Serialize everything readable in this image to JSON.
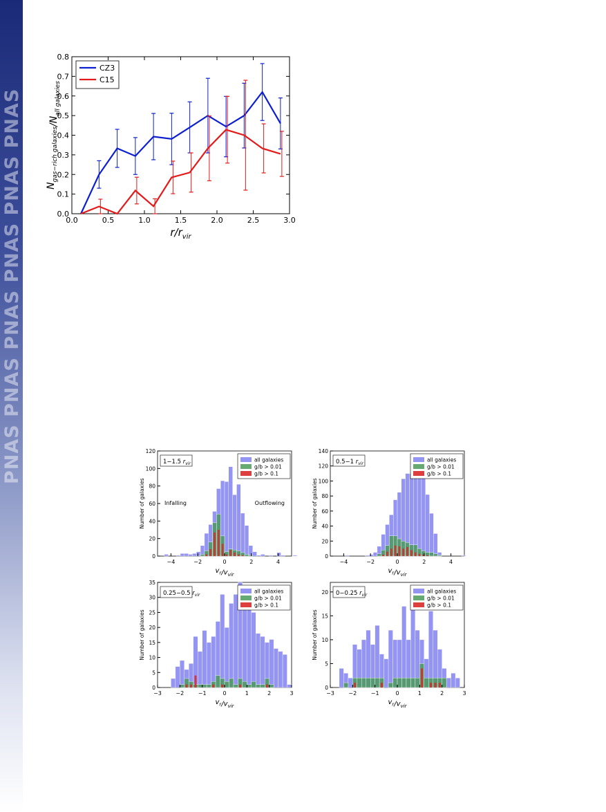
{
  "branding": {
    "journal": "PNAS"
  },
  "colors": {
    "cz3": "#0b1fd0",
    "c15": "#e31a1a",
    "all": "#8e8ef2",
    "g001": "#4c9a5a",
    "g01": "#d92a2a"
  },
  "chart_data": [
    {
      "type": "line",
      "xlabel": "r/r_vir",
      "ylabel": "N_gas−rich galaxies/N_all galaxies",
      "xlim": [
        0,
        3.0
      ],
      "ylim": [
        0,
        0.8
      ],
      "xticks": [
        "0.0",
        "0.5",
        "1.0",
        "1.5",
        "2.0",
        "2.5",
        "3.0"
      ],
      "yticks": [
        "0.0",
        "0.1",
        "0.2",
        "0.3",
        "0.4",
        "0.5",
        "0.6",
        "0.7",
        "0.8"
      ],
      "legend": "top-left",
      "series": [
        {
          "name": "CZ3",
          "color": "#0b1fd0",
          "x": [
            0.125,
            0.375,
            0.625,
            0.875,
            1.125,
            1.375,
            1.625,
            1.875,
            2.125,
            2.375,
            2.625,
            2.875
          ],
          "y": [
            0.0,
            0.2,
            0.333,
            0.294,
            0.393,
            0.381,
            0.44,
            0.5,
            0.444,
            0.5,
            0.62,
            0.46
          ],
          "err_low": [
            0.0,
            0.07,
            0.097,
            0.094,
            0.118,
            0.131,
            0.13,
            0.19,
            0.154,
            0.165,
            0.145,
            0.13
          ],
          "err_high": [
            0.0,
            0.07,
            0.097,
            0.094,
            0.118,
            0.131,
            0.13,
            0.19,
            0.154,
            0.165,
            0.145,
            0.13
          ]
        },
        {
          "name": "C15",
          "color": "#e31a1a",
          "x": [
            0.125,
            0.375,
            0.625,
            0.875,
            1.125,
            1.375,
            1.625,
            1.875,
            2.125,
            2.375,
            2.625,
            2.875
          ],
          "y": [
            0.0,
            0.037,
            0.0,
            0.118,
            0.038,
            0.185,
            0.21,
            0.333,
            0.428,
            0.4,
            0.333,
            0.305
          ],
          "err_low": [
            0.0,
            0.037,
            0.0,
            0.068,
            0.038,
            0.083,
            0.1,
            0.165,
            0.17,
            0.28,
            0.125,
            0.115
          ],
          "err_high": [
            0.0,
            0.037,
            0.0,
            0.068,
            0.038,
            0.083,
            0.1,
            0.165,
            0.17,
            0.28,
            0.125,
            0.115
          ]
        }
      ]
    },
    {
      "type": "bar",
      "panel_label": "1−1.5  r_vir",
      "xlabel": "v_r/v_vir",
      "ylabel": "Number of galaxies",
      "xlim": [
        -5,
        5
      ],
      "ylim": [
        0,
        120
      ],
      "xticks": [
        -4,
        -2,
        0,
        2,
        4
      ],
      "yticks": [
        0,
        20,
        40,
        60,
        80,
        100,
        120
      ],
      "annotations": [
        "Infalling",
        "Outflowing"
      ],
      "bin_start": -4.5,
      "bin_width": 0.3,
      "series": [
        {
          "name": "all galaxies",
          "values": [
            2,
            0,
            0,
            1,
            3,
            3,
            2,
            3,
            5,
            12,
            26,
            36,
            51,
            77,
            86,
            85,
            102,
            70,
            82,
            49,
            35,
            12,
            5,
            1,
            2,
            0,
            1,
            0,
            4,
            1,
            0,
            0,
            1
          ]
        },
        {
          "name": "g/b > 0.01",
          "values": [
            0,
            0,
            0,
            0,
            0,
            0,
            0,
            0,
            0,
            2,
            6,
            16,
            38,
            48,
            23,
            5,
            8,
            7,
            6,
            4,
            2,
            1,
            0,
            0,
            0,
            0,
            0,
            0,
            0,
            0,
            0,
            0,
            0
          ]
        },
        {
          "name": "g/b > 0.1",
          "values": [
            0,
            0,
            0,
            0,
            0,
            0,
            0,
            0,
            0,
            0,
            2,
            8,
            27,
            30,
            14,
            2,
            7,
            4,
            2,
            1,
            0,
            0,
            0,
            0,
            0,
            0,
            0,
            0,
            0,
            0,
            0,
            0,
            0
          ]
        }
      ]
    },
    {
      "type": "bar",
      "panel_label": "0.5−1  r_vir",
      "xlabel": "v_r/v_vir",
      "ylabel": "Number of galaxies",
      "xlim": [
        -5,
        5
      ],
      "ylim": [
        0,
        140
      ],
      "xticks": [
        -4,
        -2,
        0,
        2,
        4
      ],
      "yticks": [
        0,
        20,
        40,
        60,
        80,
        100,
        120,
        140
      ],
      "bin_start": -4.5,
      "bin_width": 0.3,
      "series": [
        {
          "name": "all galaxies",
          "values": [
            0,
            0,
            1,
            0,
            0,
            0,
            0,
            1,
            2,
            5,
            13,
            29,
            42,
            55,
            75,
            85,
            103,
            110,
            110,
            128,
            110,
            104,
            82,
            57,
            30,
            5,
            0,
            0,
            0,
            0,
            0,
            1,
            0
          ]
        },
        {
          "name": "g/b > 0.01",
          "values": [
            0,
            0,
            0,
            0,
            0,
            0,
            0,
            0,
            0,
            0,
            3,
            8,
            14,
            27,
            27,
            23,
            20,
            18,
            15,
            15,
            10,
            7,
            5,
            5,
            3,
            1,
            0,
            0,
            0,
            0,
            0,
            0,
            0
          ]
        },
        {
          "name": "g/b > 0.1",
          "values": [
            0,
            0,
            0,
            0,
            0,
            0,
            0,
            0,
            0,
            0,
            0,
            2,
            6,
            10,
            14,
            13,
            10,
            12,
            8,
            5,
            3,
            2,
            1,
            0,
            0,
            0,
            0,
            0,
            0,
            0,
            0,
            0,
            0
          ]
        }
      ]
    },
    {
      "type": "bar",
      "panel_label": "0.25−0.5  r_vir",
      "xlabel": "v_r/v_vir",
      "ylabel": "Number of galaxies",
      "xlim": [
        -3,
        3
      ],
      "ylim": [
        0,
        35
      ],
      "xticks": [
        -3,
        -2,
        -1,
        0,
        1,
        2,
        3
      ],
      "yticks": [
        0,
        5,
        10,
        15,
        20,
        25,
        30,
        35
      ],
      "bin_start": -2.4,
      "bin_width": 0.2,
      "series": [
        {
          "name": "all galaxies",
          "values": [
            3,
            7,
            9,
            6,
            8,
            17,
            12,
            19,
            15,
            17,
            22,
            31,
            20,
            28,
            31,
            35,
            34,
            29,
            25,
            18,
            17,
            15,
            16,
            13,
            12,
            11,
            1
          ]
        },
        {
          "name": "g/b > 0.01",
          "values": [
            0,
            0,
            1,
            3,
            2,
            1,
            1,
            1,
            1,
            2,
            4,
            3,
            2,
            3,
            1,
            3,
            2,
            1,
            2,
            1,
            1,
            3,
            1,
            0,
            0,
            0,
            0
          ]
        },
        {
          "name": "g/b > 0.1",
          "values": [
            0,
            0,
            0,
            1,
            1,
            4,
            0,
            0,
            0,
            1,
            0,
            1,
            0,
            0,
            0,
            1,
            0,
            0,
            0,
            0,
            0,
            1,
            0,
            0,
            0,
            0,
            0
          ]
        }
      ]
    },
    {
      "type": "bar",
      "panel_label": "0−0.25  r_vir",
      "xlabel": "v_r/v_vir",
      "ylabel": "Number of galaxies",
      "xlim": [
        -3,
        3
      ],
      "ylim": [
        0,
        22
      ],
      "xticks": [
        -3,
        -2,
        -1,
        0,
        1,
        2,
        3
      ],
      "yticks": [
        0,
        5,
        10,
        15,
        20
      ],
      "bin_start": -2.6,
      "bin_width": 0.2,
      "series": [
        {
          "name": "all galaxies",
          "values": [
            4,
            3,
            2,
            9,
            8,
            10,
            12,
            9,
            13,
            7,
            6,
            12,
            10,
            10,
            17,
            10,
            18,
            12,
            10,
            6,
            16,
            12,
            8,
            4,
            2,
            3,
            2
          ]
        },
        {
          "name": "g/b > 0.01",
          "values": [
            0,
            1,
            0,
            2,
            2,
            2,
            2,
            2,
            2,
            2,
            0,
            1,
            2,
            2,
            2,
            2,
            2,
            2,
            5,
            2,
            2,
            2,
            2,
            2,
            0,
            0,
            0
          ]
        },
        {
          "name": "g/b > 0.1",
          "values": [
            0,
            0,
            0,
            1,
            0,
            0,
            0,
            0,
            0,
            1,
            0,
            0,
            0,
            0,
            0,
            0,
            0,
            0,
            4,
            0,
            1,
            1,
            1,
            0,
            0,
            0,
            0
          ]
        }
      ]
    }
  ]
}
